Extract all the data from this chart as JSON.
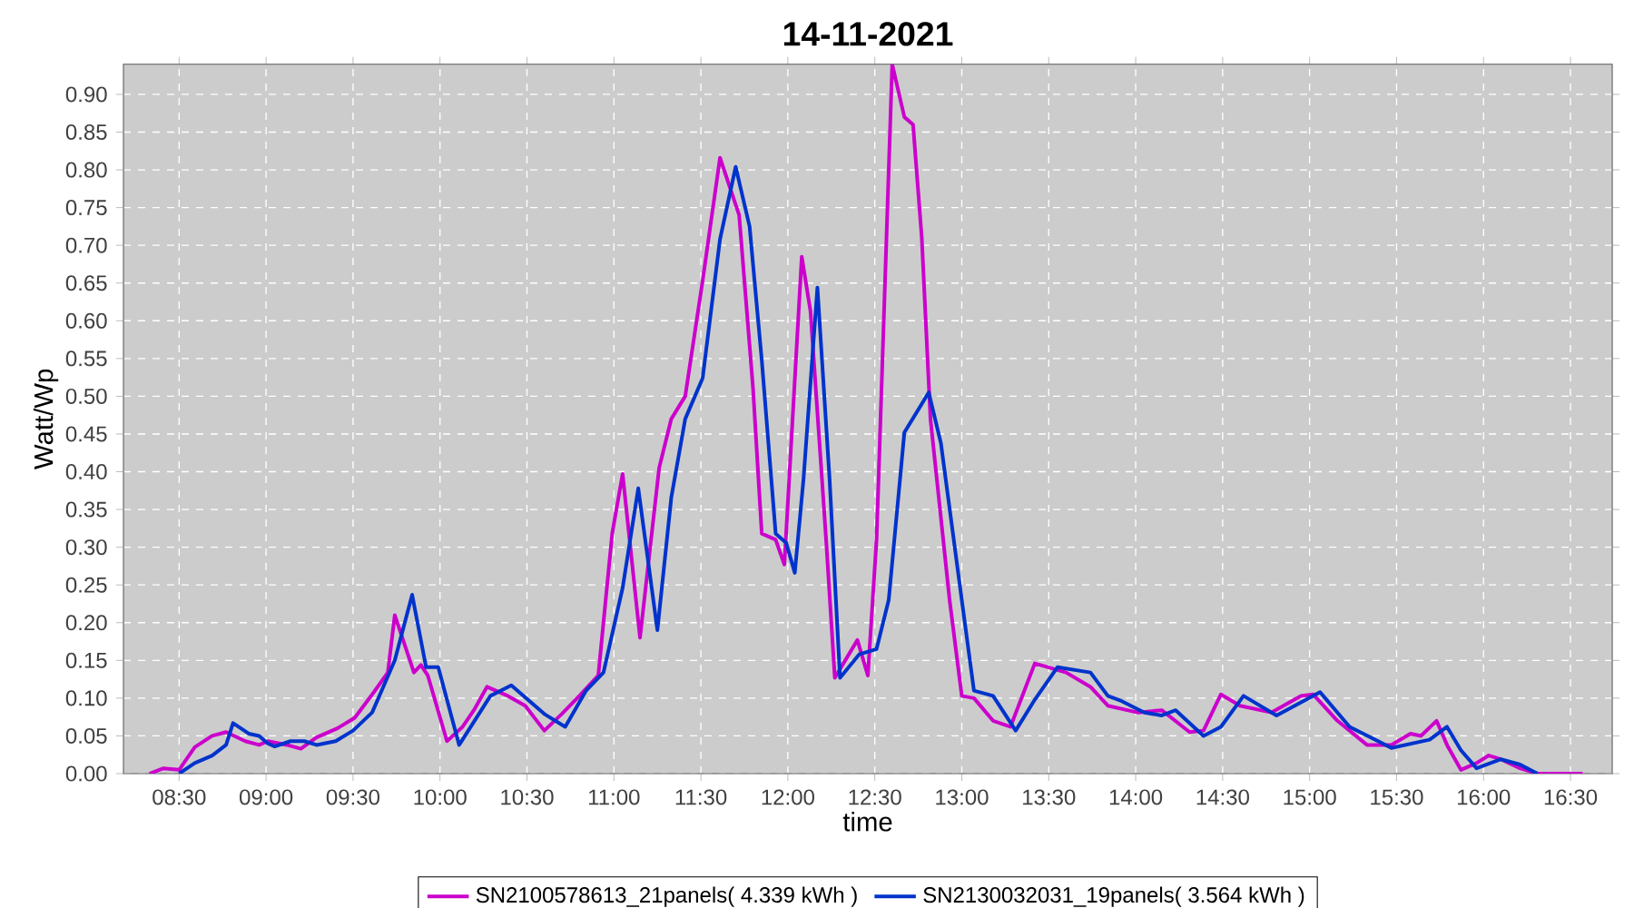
{
  "chart_data": {
    "type": "line",
    "title": "14-11-2021",
    "xlabel": "time",
    "ylabel": "Watt/Wp",
    "xlim": [
      8.18,
      16.74
    ],
    "xticks": [
      {
        "value": 8.5,
        "label": "08:30"
      },
      {
        "value": 9,
        "label": "09:00"
      },
      {
        "value": 9.5,
        "label": "09:30"
      },
      {
        "value": 10,
        "label": "10:00"
      },
      {
        "value": 10.5,
        "label": "10:30"
      },
      {
        "value": 11,
        "label": "11:00"
      },
      {
        "value": 11.5,
        "label": "11:30"
      },
      {
        "value": 12,
        "label": "12:00"
      },
      {
        "value": 12.5,
        "label": "12:30"
      },
      {
        "value": 13,
        "label": "13:00"
      },
      {
        "value": 13.5,
        "label": "13:30"
      },
      {
        "value": 14,
        "label": "14:00"
      },
      {
        "value": 14.5,
        "label": "14:30"
      },
      {
        "value": 15,
        "label": "15:00"
      },
      {
        "value": 15.5,
        "label": "15:30"
      },
      {
        "value": 16,
        "label": "16:00"
      },
      {
        "value": 16.5,
        "label": "16:30"
      }
    ],
    "ylim": [
      0,
      0.94
    ],
    "yticks": [
      {
        "value": 0,
        "label": "0.00"
      },
      {
        "value": 0.05,
        "label": "0.05"
      },
      {
        "value": 0.1,
        "label": "0.10"
      },
      {
        "value": 0.15,
        "label": "0.15"
      },
      {
        "value": 0.2,
        "label": "0.20"
      },
      {
        "value": 0.25,
        "label": "0.25"
      },
      {
        "value": 0.3,
        "label": "0.30"
      },
      {
        "value": 0.35,
        "label": "0.35"
      },
      {
        "value": 0.4,
        "label": "0.40"
      },
      {
        "value": 0.45,
        "label": "0.45"
      },
      {
        "value": 0.5,
        "label": "0.50"
      },
      {
        "value": 0.55,
        "label": "0.55"
      },
      {
        "value": 0.6,
        "label": "0.60"
      },
      {
        "value": 0.65,
        "label": "0.65"
      },
      {
        "value": 0.7,
        "label": "0.70"
      },
      {
        "value": 0.75,
        "label": "0.75"
      },
      {
        "value": 0.8,
        "label": "0.80"
      },
      {
        "value": 0.85,
        "label": "0.85"
      },
      {
        "value": 0.9,
        "label": "0.90"
      }
    ],
    "grid": true,
    "legend": "bottom",
    "marker": "none",
    "line_style": "solid",
    "series": [
      {
        "name": "SN2100578613_21panels( 4.339 kWh )",
        "color": "#cc00cc",
        "x": [
          8.33,
          8.41,
          8.5,
          8.59,
          8.69,
          8.77,
          8.88,
          8.96,
          9.01,
          9.12,
          9.2,
          9.29,
          9.41,
          9.51,
          9.62,
          9.7,
          9.74,
          9.85,
          9.89,
          9.93,
          10.04,
          10.13,
          10.2,
          10.27,
          10.39,
          10.49,
          10.6,
          10.7,
          10.81,
          10.91,
          10.99,
          11.05,
          11.15,
          11.26,
          11.33,
          11.41,
          11.51,
          11.61,
          11.72,
          11.8,
          11.85,
          11.93,
          11.98,
          12.08,
          12.13,
          12.22,
          12.27,
          12.4,
          12.46,
          12.51,
          12.6,
          12.67,
          12.72,
          12.77,
          12.82,
          12.93,
          13.0,
          13.07,
          13.18,
          13.28,
          13.42,
          13.6,
          13.74,
          13.84,
          14.01,
          14.15,
          14.31,
          14.39,
          14.49,
          14.6,
          14.78,
          14.95,
          15.02,
          15.16,
          15.33,
          15.47,
          15.58,
          15.64,
          15.73,
          15.79,
          15.87,
          15.96,
          16.03,
          16.1,
          16.21,
          16.31,
          16.57
        ],
        "values": [
          0,
          0.007,
          0.005,
          0.035,
          0.05,
          0.055,
          0.043,
          0.038,
          0.043,
          0.038,
          0.033,
          0.048,
          0.06,
          0.074,
          0.108,
          0.134,
          0.21,
          0.134,
          0.144,
          0.13,
          0.043,
          0.062,
          0.086,
          0.115,
          0.103,
          0.09,
          0.057,
          0.079,
          0.105,
          0.13,
          0.318,
          0.397,
          0.18,
          0.405,
          0.47,
          0.5,
          0.653,
          0.816,
          0.74,
          0.51,
          0.318,
          0.31,
          0.277,
          0.685,
          0.613,
          0.31,
          0.127,
          0.177,
          0.13,
          0.31,
          0.94,
          0.87,
          0.86,
          0.71,
          0.47,
          0.23,
          0.103,
          0.1,
          0.07,
          0.062,
          0.146,
          0.134,
          0.115,
          0.09,
          0.081,
          0.084,
          0.055,
          0.057,
          0.105,
          0.09,
          0.081,
          0.103,
          0.105,
          0.07,
          0.038,
          0.038,
          0.053,
          0.05,
          0.07,
          0.038,
          0.005,
          0.014,
          0.024,
          0.019,
          0.007,
          0,
          0
        ]
      },
      {
        "name": "SN2130032031_19panels( 3.564 kWh )",
        "color": "#0033cc",
        "x": [
          8.5,
          8.59,
          8.69,
          8.77,
          8.81,
          8.9,
          8.96,
          9.01,
          9.05,
          9.14,
          9.22,
          9.29,
          9.4,
          9.5,
          9.61,
          9.74,
          9.84,
          9.92,
          9.99,
          10.11,
          10.29,
          10.41,
          10.6,
          10.72,
          10.84,
          10.94,
          11.05,
          11.14,
          11.25,
          11.33,
          11.41,
          11.51,
          11.61,
          11.7,
          11.78,
          11.85,
          11.93,
          11.99,
          12.04,
          12.09,
          12.17,
          12.24,
          12.3,
          12.41,
          12.51,
          12.58,
          12.67,
          12.81,
          12.88,
          13.0,
          13.07,
          13.18,
          13.31,
          13.42,
          13.55,
          13.74,
          13.84,
          13.92,
          14.05,
          14.15,
          14.23,
          14.39,
          14.49,
          14.62,
          14.81,
          15.06,
          15.23,
          15.47,
          15.69,
          15.79,
          15.87,
          15.96,
          16.1,
          16.21,
          16.31
        ],
        "values": [
          0,
          0.014,
          0.024,
          0.038,
          0.067,
          0.053,
          0.05,
          0.04,
          0.036,
          0.043,
          0.043,
          0.038,
          0.043,
          0.057,
          0.081,
          0.15,
          0.237,
          0.141,
          0.141,
          0.038,
          0.103,
          0.117,
          0.079,
          0.062,
          0.11,
          0.134,
          0.246,
          0.378,
          0.19,
          0.366,
          0.47,
          0.524,
          0.708,
          0.804,
          0.725,
          0.548,
          0.318,
          0.306,
          0.266,
          0.39,
          0.644,
          0.39,
          0.127,
          0.158,
          0.165,
          0.23,
          0.452,
          0.505,
          0.438,
          0.23,
          0.11,
          0.103,
          0.057,
          0.098,
          0.141,
          0.134,
          0.103,
          0.096,
          0.081,
          0.077,
          0.084,
          0.05,
          0.062,
          0.103,
          0.077,
          0.108,
          0.062,
          0.034,
          0.045,
          0.062,
          0.031,
          0.007,
          0.019,
          0.012,
          0
        ]
      }
    ]
  }
}
